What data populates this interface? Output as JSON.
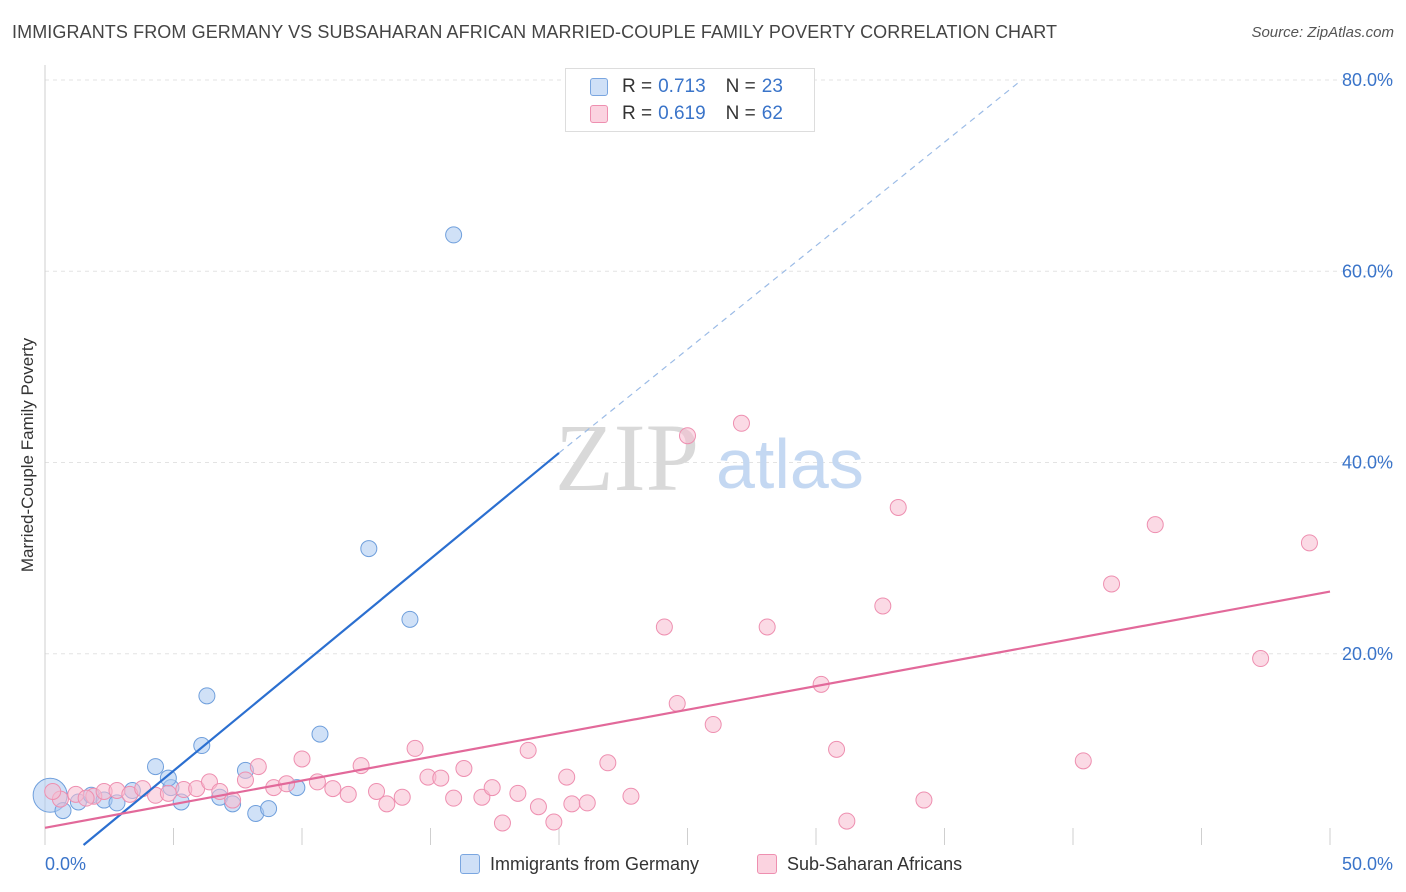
{
  "title": "IMMIGRANTS FROM GERMANY VS SUBSAHARAN AFRICAN MARRIED-COUPLE FAMILY POVERTY CORRELATION CHART",
  "source": "Source: ZipAtlas.com",
  "watermark": {
    "zip": "ZIP",
    "atlas": "atlas"
  },
  "legend_top": [
    {
      "r_label": "R = ",
      "r_value": "0.713",
      "n_label": "N = ",
      "n_value": "23",
      "color": "#aac8f0",
      "border": "#7aa6e0"
    },
    {
      "r_label": "R = ",
      "r_value": "0.619",
      "n_label": "N = ",
      "n_value": "62",
      "color": "#f7bcd0",
      "border": "#ee8fb0"
    }
  ],
  "legend_bottom": [
    {
      "label": "Immigrants from Germany",
      "color": "#aac8f0",
      "border": "#7aa6e0"
    },
    {
      "label": "Sub-Saharan Africans",
      "color": "#f7bcd0",
      "border": "#ee8fb0"
    }
  ],
  "chart_data": {
    "type": "scatter",
    "title": "IMMIGRANTS FROM GERMANY VS SUBSAHARAN AFRICAN MARRIED-COUPLE FAMILY POVERTY CORRELATION CHART",
    "xlabel": "",
    "ylabel": "Married-Couple Family Poverty",
    "xlim": [
      0,
      50
    ],
    "ylim": [
      0,
      80
    ],
    "x_tick_labels": [
      {
        "value": 0,
        "label": "0.0%"
      },
      {
        "value": 50,
        "label": "50.0%"
      }
    ],
    "y_tick_labels": [
      {
        "value": 20,
        "label": "20.0%"
      },
      {
        "value": 40,
        "label": "40.0%"
      },
      {
        "value": 60,
        "label": "60.0%"
      },
      {
        "value": 80,
        "label": "80.0%"
      }
    ],
    "grid": "horizontal dashed",
    "legend": "top-center",
    "series": [
      {
        "name": "Immigrants from Germany",
        "color": "#aac8f0",
        "edge": "#6f9fdc",
        "line_color": "#2b6fd0",
        "trend": {
          "x_start": 1.5,
          "y_start": 0,
          "x_solid_end": 20,
          "y_solid_end": 41,
          "x_end": 38,
          "y_end": 80
        },
        "points": [
          [
            0.2,
            5.2
          ],
          [
            0.7,
            3.6
          ],
          [
            1.3,
            4.5
          ],
          [
            1.8,
            5.2
          ],
          [
            2.3,
            4.7
          ],
          [
            2.8,
            4.4
          ],
          [
            3.4,
            5.7
          ],
          [
            4.3,
            8.2
          ],
          [
            4.9,
            6.0
          ],
          [
            4.8,
            7.0
          ],
          [
            5.3,
            4.5
          ],
          [
            6.1,
            10.4
          ],
          [
            6.3,
            15.6
          ],
          [
            6.8,
            5.0
          ],
          [
            7.3,
            4.3
          ],
          [
            7.8,
            7.8
          ],
          [
            8.2,
            3.3
          ],
          [
            8.7,
            3.8
          ],
          [
            9.8,
            6.0
          ],
          [
            10.7,
            11.6
          ],
          [
            12.6,
            31.0
          ],
          [
            14.2,
            23.6
          ],
          [
            15.9,
            63.8
          ]
        ]
      },
      {
        "name": "Sub-Saharan Africans",
        "color": "#f7bcd0",
        "edge": "#ee8fb0",
        "line_color": "#e2699a",
        "trend": {
          "x_start": 0,
          "y_start": 1.8,
          "x_end": 50,
          "y_end": 26.5
        },
        "points": [
          [
            0.6,
            4.8
          ],
          [
            1.2,
            5.3
          ],
          [
            1.9,
            5.1
          ],
          [
            2.3,
            5.6
          ],
          [
            2.8,
            5.7
          ],
          [
            3.3,
            5.3
          ],
          [
            3.8,
            5.9
          ],
          [
            4.3,
            5.2
          ],
          [
            4.8,
            5.4
          ],
          [
            5.4,
            5.8
          ],
          [
            5.9,
            5.9
          ],
          [
            6.4,
            6.6
          ],
          [
            6.8,
            5.6
          ],
          [
            7.3,
            4.7
          ],
          [
            7.8,
            6.8
          ],
          [
            8.3,
            8.2
          ],
          [
            8.9,
            6.0
          ],
          [
            9.4,
            6.4
          ],
          [
            10.0,
            9.0
          ],
          [
            10.6,
            6.6
          ],
          [
            11.2,
            5.9
          ],
          [
            11.8,
            5.3
          ],
          [
            12.3,
            8.3
          ],
          [
            12.9,
            5.6
          ],
          [
            13.3,
            4.3
          ],
          [
            13.9,
            5.0
          ],
          [
            14.4,
            10.1
          ],
          [
            14.9,
            7.1
          ],
          [
            15.4,
            7.0
          ],
          [
            15.9,
            4.9
          ],
          [
            16.3,
            8.0
          ],
          [
            17.0,
            5.0
          ],
          [
            17.4,
            6.0
          ],
          [
            17.8,
            2.3
          ],
          [
            18.8,
            9.9
          ],
          [
            18.4,
            5.4
          ],
          [
            19.2,
            4.0
          ],
          [
            19.8,
            2.4
          ],
          [
            20.3,
            7.1
          ],
          [
            20.5,
            4.3
          ],
          [
            21.1,
            4.4
          ],
          [
            21.9,
            8.6
          ],
          [
            22.8,
            5.1
          ],
          [
            24.1,
            22.8
          ],
          [
            24.6,
            14.8
          ],
          [
            25.0,
            42.8
          ],
          [
            26.0,
            12.6
          ],
          [
            27.1,
            44.1
          ],
          [
            28.1,
            22.8
          ],
          [
            30.2,
            16.8
          ],
          [
            30.8,
            10.0
          ],
          [
            31.2,
            2.5
          ],
          [
            32.6,
            25.0
          ],
          [
            33.2,
            35.3
          ],
          [
            34.2,
            4.7
          ],
          [
            40.4,
            8.8
          ],
          [
            41.5,
            27.3
          ],
          [
            43.2,
            33.5
          ],
          [
            47.3,
            19.5
          ],
          [
            49.2,
            31.6
          ],
          [
            0.3,
            5.6
          ],
          [
            1.6,
            4.9
          ]
        ]
      }
    ]
  }
}
